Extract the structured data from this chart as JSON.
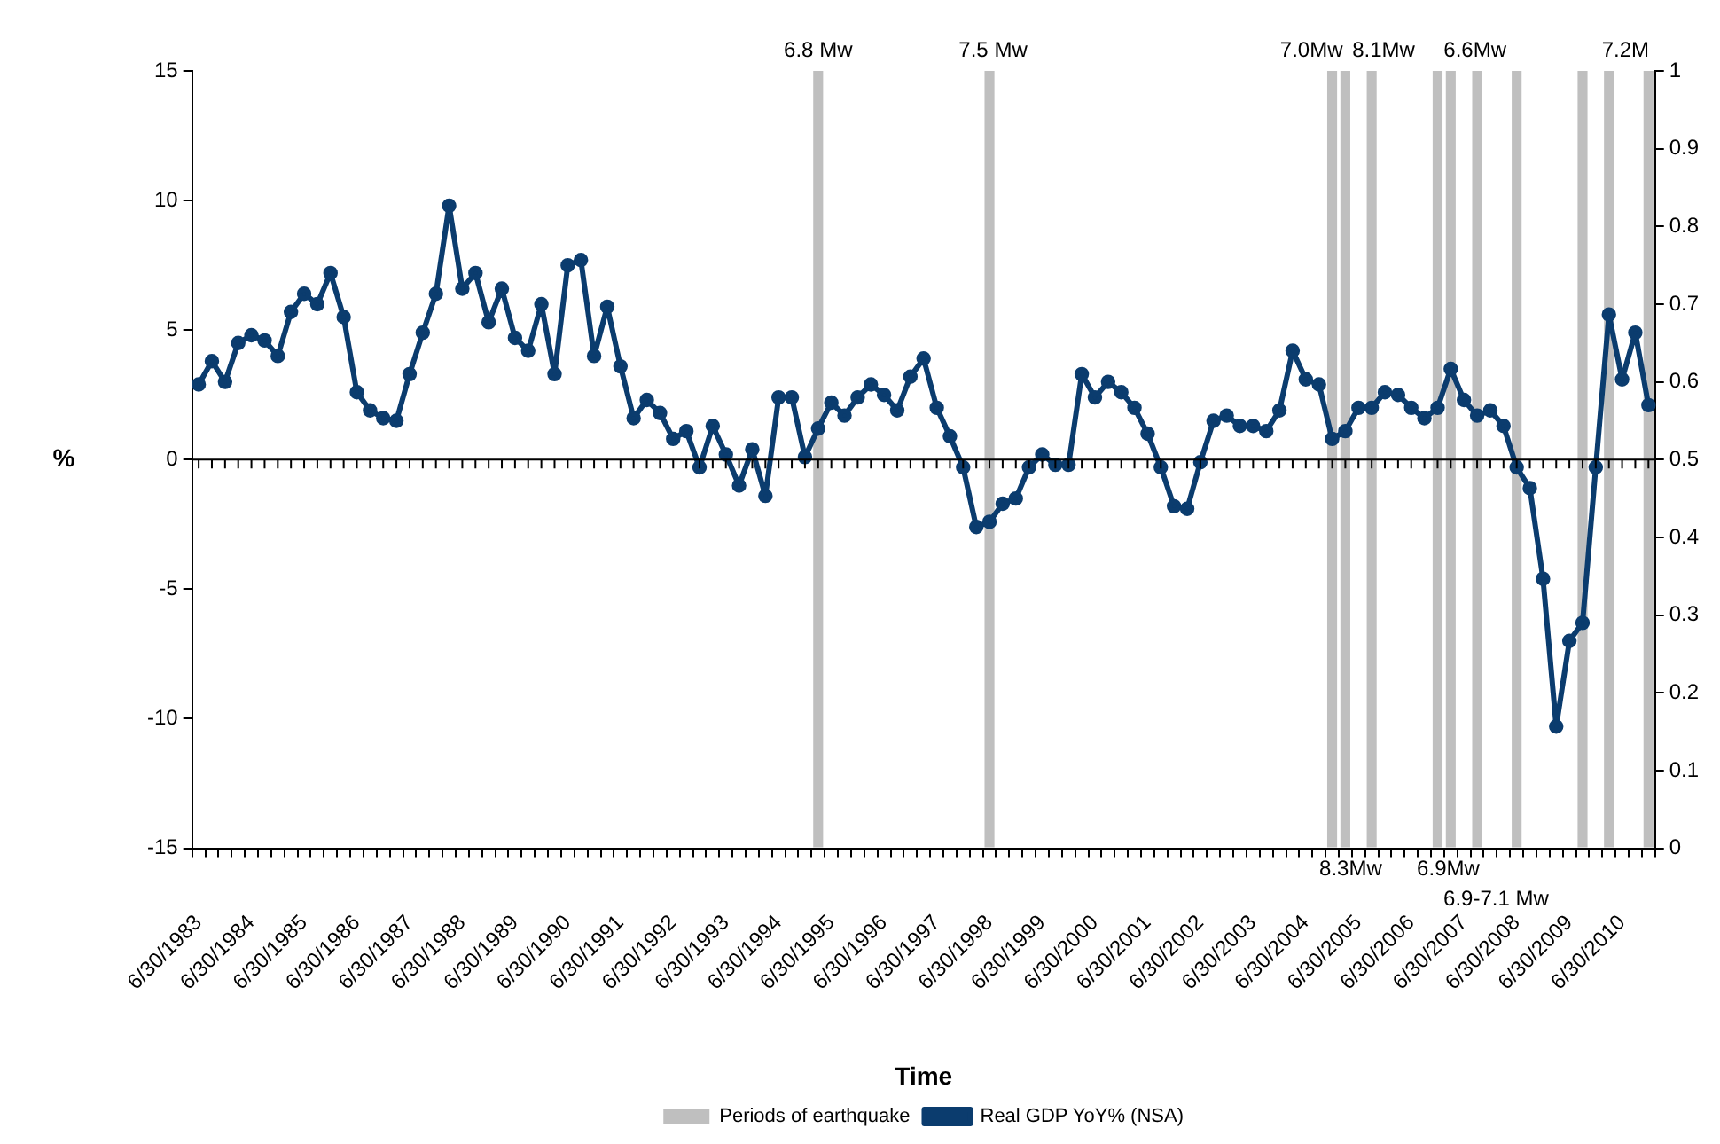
{
  "chart_data": {
    "type": "line",
    "xlabel": "Time",
    "ylabel": "%",
    "legend": "bottom",
    "marker": "circle",
    "grid": false,
    "categories": [
      "6/30/1983",
      null,
      null,
      null,
      "6/30/1984",
      null,
      null,
      null,
      "6/30/1985",
      null,
      null,
      null,
      "6/30/1986",
      null,
      null,
      null,
      "6/30/1987",
      null,
      null,
      null,
      "6/30/1988",
      null,
      null,
      null,
      "6/30/1989",
      null,
      null,
      null,
      "6/30/1990",
      null,
      null,
      null,
      "6/30/1991",
      null,
      null,
      null,
      "6/30/1992",
      null,
      null,
      null,
      "6/30/1993",
      null,
      null,
      null,
      "6/30/1994",
      null,
      null,
      null,
      "6/30/1995",
      null,
      null,
      null,
      "6/30/1996",
      null,
      null,
      null,
      "6/30/1997",
      null,
      null,
      null,
      "6/30/1998",
      null,
      null,
      null,
      "6/30/1999",
      null,
      null,
      null,
      "6/30/2000",
      null,
      null,
      null,
      "6/30/2001",
      null,
      null,
      null,
      "6/30/2002",
      null,
      null,
      null,
      "6/30/2003",
      null,
      null,
      null,
      "6/30/2004",
      null,
      null,
      null,
      "6/30/2005",
      null,
      null,
      null,
      "6/30/2006",
      null,
      null,
      null,
      "6/30/2007",
      null,
      null,
      null,
      "6/30/2008",
      null,
      null,
      null,
      "6/30/2009",
      null,
      null,
      null,
      "6/30/2010",
      null,
      null
    ],
    "series": [
      {
        "name": "Periods of earthquake",
        "type": "bar",
        "axis": "y2",
        "color": "#bfbfbf",
        "values": [
          null,
          null,
          null,
          null,
          null,
          null,
          null,
          null,
          null,
          null,
          null,
          null,
          null,
          null,
          null,
          null,
          null,
          null,
          null,
          null,
          null,
          null,
          null,
          null,
          null,
          null,
          null,
          null,
          null,
          null,
          null,
          null,
          null,
          null,
          null,
          null,
          null,
          null,
          null,
          null,
          null,
          null,
          null,
          null,
          null,
          null,
          null,
          1,
          null,
          null,
          null,
          null,
          null,
          null,
          null,
          null,
          null,
          null,
          null,
          null,
          1,
          null,
          null,
          null,
          null,
          null,
          null,
          null,
          null,
          null,
          null,
          null,
          null,
          null,
          null,
          null,
          null,
          null,
          null,
          null,
          null,
          null,
          null,
          null,
          null,
          null,
          1,
          1,
          null,
          1,
          null,
          null,
          null,
          null,
          1,
          1,
          null,
          1,
          null,
          null,
          1,
          null,
          null,
          null,
          null,
          1,
          null,
          1,
          null,
          null,
          1
        ]
      },
      {
        "name": "Real GDP YoY% (NSA)",
        "type": "line",
        "color": "#0b3c6e",
        "values": [
          2.9,
          3.8,
          3.0,
          4.5,
          4.8,
          4.6,
          4.0,
          5.7,
          6.4,
          6.0,
          7.2,
          5.5,
          2.6,
          1.9,
          1.6,
          1.5,
          3.3,
          4.9,
          6.4,
          9.8,
          6.6,
          7.2,
          5.3,
          6.6,
          4.7,
          4.2,
          6.0,
          3.3,
          7.5,
          7.7,
          4.0,
          5.9,
          3.6,
          1.6,
          2.3,
          1.8,
          0.8,
          1.1,
          -0.3,
          1.3,
          0.2,
          -1.0,
          0.4,
          -1.4,
          2.4,
          2.4,
          0.1,
          1.2,
          2.2,
          1.7,
          2.4,
          2.9,
          2.5,
          1.9,
          3.2,
          3.9,
          2.0,
          0.9,
          -0.3,
          -2.6,
          -2.4,
          -1.7,
          -1.5,
          -0.3,
          0.2,
          -0.2,
          -0.2,
          3.3,
          2.4,
          3.0,
          2.6,
          2.0,
          1.0,
          -0.3,
          -1.8,
          -1.9,
          -0.1,
          1.5,
          1.7,
          1.3,
          1.3,
          1.1,
          1.9,
          4.2,
          3.1,
          2.9,
          0.8,
          1.1,
          2.0,
          2.0,
          2.6,
          2.5,
          2.0,
          1.6,
          2.0,
          3.5,
          2.3,
          1.7,
          1.9,
          1.3,
          -0.3,
          -1.1,
          -4.6,
          -10.3,
          -7.0,
          -6.3,
          -0.3,
          5.6,
          3.1,
          4.9,
          2.1
        ]
      }
    ],
    "ref_lines": [
      {
        "axis": "y",
        "value": 0
      }
    ],
    "ylim": [
      -15,
      15
    ],
    "yticks": [
      -15,
      -10,
      -5,
      0,
      5,
      10,
      15
    ],
    "y2lim": [
      0,
      1
    ],
    "y2ticks": [
      0,
      0.1,
      0.2,
      0.3,
      0.4,
      0.5,
      0.6,
      0.7,
      0.8,
      0.9,
      1
    ],
    "annotations": [
      "6.8 Mw",
      "7.5 Mw",
      "7.0Mw",
      "8.1Mw",
      "6.6Mw",
      "7.2M",
      "8.3Mw",
      "6.9Mw",
      "6.9-7.1 Mw"
    ]
  }
}
